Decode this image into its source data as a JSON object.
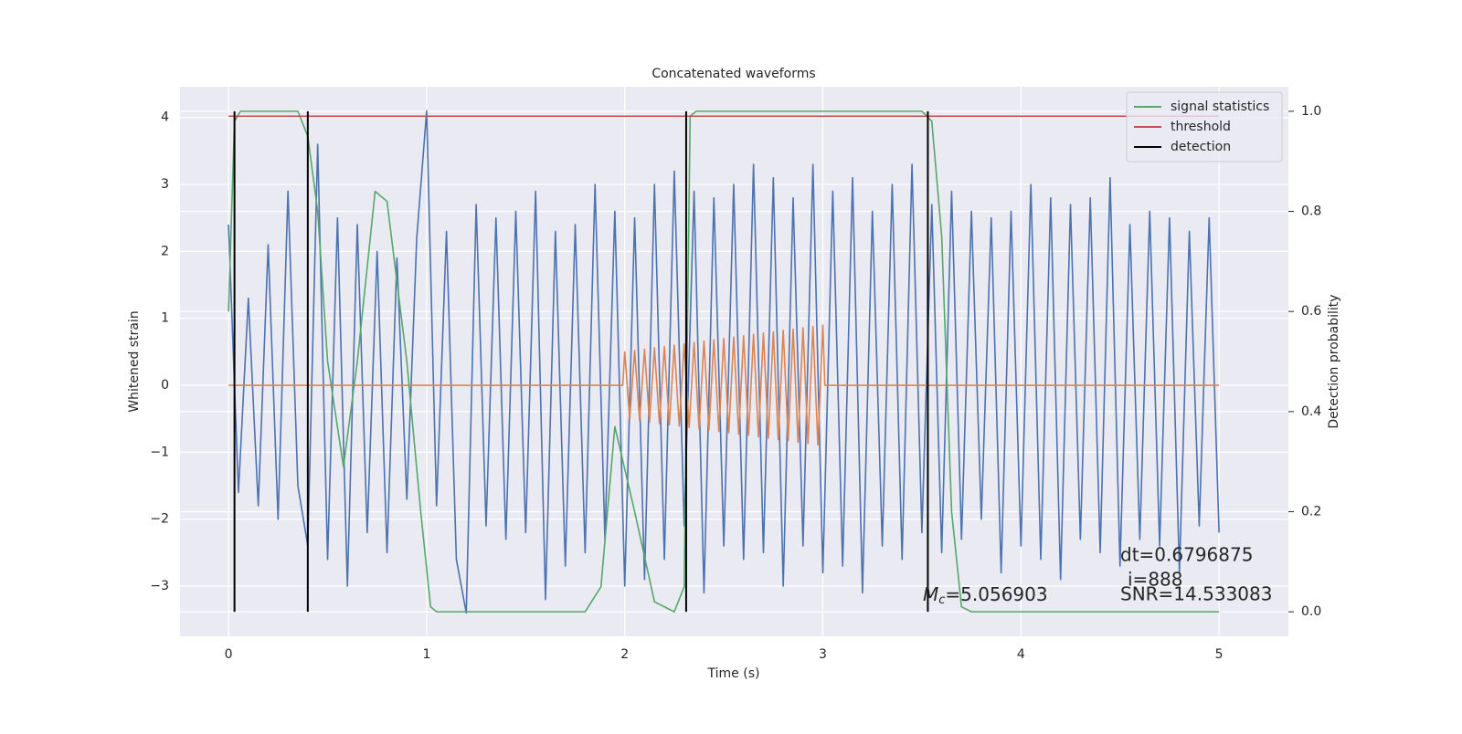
{
  "chart_data": {
    "type": "line",
    "title": "Concatenated waveforms",
    "xlabel": "Time (s)",
    "ylabel": "Whitened strain",
    "y2label": "Detection probability",
    "xlim": [
      -0.245,
      5.35
    ],
    "ylim": [
      -3.75,
      4.46
    ],
    "y2lim": [
      -0.049,
      1.049
    ],
    "xticks": [
      0,
      1,
      2,
      3,
      4,
      5
    ],
    "yticks": [
      {
        "value": -3,
        "label": "−3"
      },
      {
        "value": -2,
        "label": "−2"
      },
      {
        "value": -1,
        "label": "−1"
      },
      0,
      1,
      2,
      3,
      4
    ],
    "y2ticks": [
      {
        "value": 0,
        "label": "0.0"
      },
      0.2,
      0.4,
      0.6,
      0.8,
      {
        "value": 1,
        "label": "1.0"
      }
    ],
    "grid": true,
    "legend": "upper right",
    "series": [
      {
        "color": "#4c72b0",
        "axis": "y",
        "x": [
          0,
          0.05,
          0.1,
          0.15,
          0.2,
          0.25,
          0.3,
          0.35,
          0.4,
          0.45,
          0.5,
          0.55,
          0.6,
          0.65,
          0.7,
          0.75,
          0.8,
          0.85,
          0.9,
          0.95,
          1,
          1.05,
          1.1,
          1.15,
          1.2,
          1.25,
          1.3,
          1.35,
          1.4,
          1.45,
          1.5,
          1.55,
          1.6,
          1.65,
          1.7,
          1.75,
          1.8,
          1.85,
          1.9,
          1.95,
          2,
          2.05,
          2.1,
          2.15,
          2.2,
          2.25,
          2.3,
          2.35,
          2.4,
          2.45,
          2.5,
          2.55,
          2.6,
          2.65,
          2.7,
          2.75,
          2.8,
          2.85,
          2.9,
          2.95,
          3,
          3.05,
          3.1,
          3.15,
          3.2,
          3.25,
          3.3,
          3.35,
          3.4,
          3.45,
          3.5,
          3.55,
          3.6,
          3.65,
          3.7,
          3.75,
          3.8,
          3.85,
          3.9,
          3.95,
          4,
          4.05,
          4.1,
          4.15,
          4.2,
          4.25,
          4.3,
          4.35,
          4.4,
          4.45,
          4.5,
          4.55,
          4.6,
          4.65,
          4.7,
          4.75,
          4.8,
          4.85,
          4.9,
          4.95,
          5
        ],
        "values": [
          2.4,
          -1.6,
          1.3,
          -1.8,
          2.1,
          -2.0,
          2.9,
          -1.5,
          -2.4,
          3.6,
          -2.6,
          2.5,
          -3.0,
          2.4,
          -2.2,
          2.0,
          -2.5,
          1.9,
          -1.7,
          2.2,
          4.1,
          -1.8,
          2.3,
          -2.6,
          -3.4,
          2.7,
          -2.1,
          2.5,
          -2.3,
          2.6,
          -2.2,
          2.9,
          -3.2,
          2.3,
          -2.7,
          2.4,
          -2.5,
          3.0,
          -2.3,
          2.6,
          -3.0,
          2.5,
          -2.9,
          3.0,
          -2.6,
          3.2,
          -2.1,
          2.9,
          -3.1,
          2.8,
          -2.4,
          3.0,
          -2.6,
          3.3,
          -2.5,
          3.1,
          -3.0,
          2.8,
          -2.4,
          3.3,
          -2.8,
          2.9,
          -2.7,
          3.1,
          -3.1,
          2.6,
          -2.4,
          3.0,
          -2.6,
          3.3,
          -2.2,
          2.7,
          -2.5,
          2.9,
          -2.3,
          2.6,
          -2.0,
          2.5,
          -2.8,
          2.6,
          -2.4,
          3.0,
          -2.6,
          2.8,
          -2.9,
          2.7,
          -2.3,
          2.8,
          -2.5,
          3.1,
          -2.7,
          2.4,
          -2.3,
          2.6,
          -2.4,
          2.5,
          -2.8,
          2.3,
          -2.1,
          2.5,
          -2.2
        ]
      },
      {
        "color": "#dd8452",
        "axis": "y",
        "x": [
          0,
          1.99,
          2,
          2.025,
          2.05,
          2.075,
          2.1,
          2.125,
          2.15,
          2.175,
          2.2,
          2.225,
          2.25,
          2.275,
          2.3,
          2.325,
          2.35,
          2.375,
          2.4,
          2.425,
          2.45,
          2.475,
          2.5,
          2.525,
          2.55,
          2.575,
          2.6,
          2.625,
          2.65,
          2.675,
          2.7,
          2.725,
          2.75,
          2.775,
          2.8,
          2.825,
          2.85,
          2.875,
          2.9,
          2.925,
          2.95,
          2.975,
          3,
          3.01,
          5
        ],
        "values": [
          0,
          0,
          0.5,
          -0.51,
          0.52,
          -0.53,
          0.54,
          -0.55,
          0.56,
          -0.57,
          0.58,
          -0.59,
          0.6,
          -0.61,
          0.62,
          -0.63,
          0.64,
          -0.65,
          0.66,
          -0.67,
          0.68,
          -0.69,
          0.7,
          -0.71,
          0.72,
          -0.73,
          0.74,
          -0.75,
          0.76,
          -0.77,
          0.78,
          -0.79,
          0.8,
          -0.81,
          0.82,
          -0.83,
          0.84,
          -0.85,
          0.86,
          -0.87,
          0.88,
          -0.89,
          0.9,
          0,
          0
        ]
      },
      {
        "name": "signal statistics",
        "color": "#55a868",
        "axis": "y2",
        "x": [
          0,
          0.03,
          0.06,
          0.35,
          0.4,
          0.45,
          0.5,
          0.58,
          0.65,
          0.74,
          0.8,
          0.9,
          0.97,
          1.02,
          1.05,
          1.8,
          1.88,
          1.95,
          2.05,
          2.15,
          2.25,
          2.3,
          2.33,
          2.36,
          3.5,
          3.55,
          3.6,
          3.65,
          3.7,
          3.75,
          5
        ],
        "values": [
          0.6,
          0.98,
          1.0,
          1.0,
          0.95,
          0.8,
          0.5,
          0.29,
          0.5,
          0.84,
          0.82,
          0.5,
          0.2,
          0.01,
          0.0,
          0.0,
          0.05,
          0.37,
          0.2,
          0.02,
          0.0,
          0.05,
          0.99,
          1.0,
          1.0,
          0.98,
          0.75,
          0.2,
          0.01,
          0.0,
          0.0
        ]
      },
      {
        "name": "threshold",
        "color": "#c44e52",
        "axis": "y2",
        "x": [
          0,
          5
        ],
        "values": [
          0.99,
          0.99
        ]
      }
    ],
    "detections": {
      "name": "detection",
      "color": "#000000",
      "x": [
        0.03,
        0.4,
        2.31,
        3.53
      ]
    },
    "annotations": {
      "dt": "dt=0.6796875",
      "i": "i=888",
      "snr": "SNR=14.533083",
      "mc": {
        "symbol": "M",
        "subscript": "c",
        "text": "=5.056903"
      }
    }
  }
}
